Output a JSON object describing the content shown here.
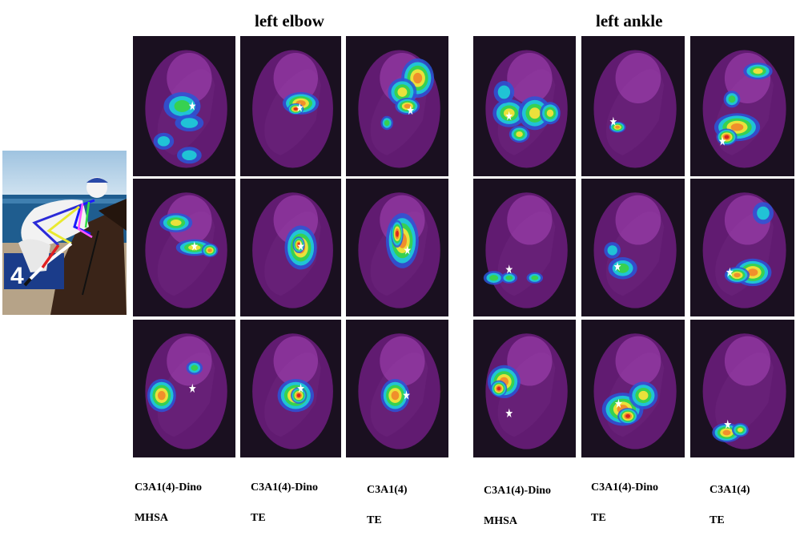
{
  "titles": {
    "left_elbow": "left elbow",
    "left_ankle": "left ankle"
  },
  "reference_image": {
    "bib_number": "4"
  },
  "heatmap_colors": [
    "#7a1f8c",
    "#2a56d8",
    "#20c9d6",
    "#39d24a",
    "#f3e23a",
    "#f08a2a",
    "#d62020"
  ],
  "method_labels": {
    "elbow": [
      {
        "line1": "C3A1(4)-Dino",
        "line2": "MHSA"
      },
      {
        "line1": "C3A1(4)-Dino",
        "line2": "TE"
      },
      {
        "line1": "C3A1(4)",
        "line2": "TE"
      }
    ],
    "ankle": [
      {
        "line1": "C3A1(4)-Dino",
        "line2": "MHSA"
      },
      {
        "line1": "C3A1(4)-Dino",
        "line2": "TE"
      },
      {
        "line1": "C3A1(4)",
        "line2": "TE"
      }
    ]
  }
}
